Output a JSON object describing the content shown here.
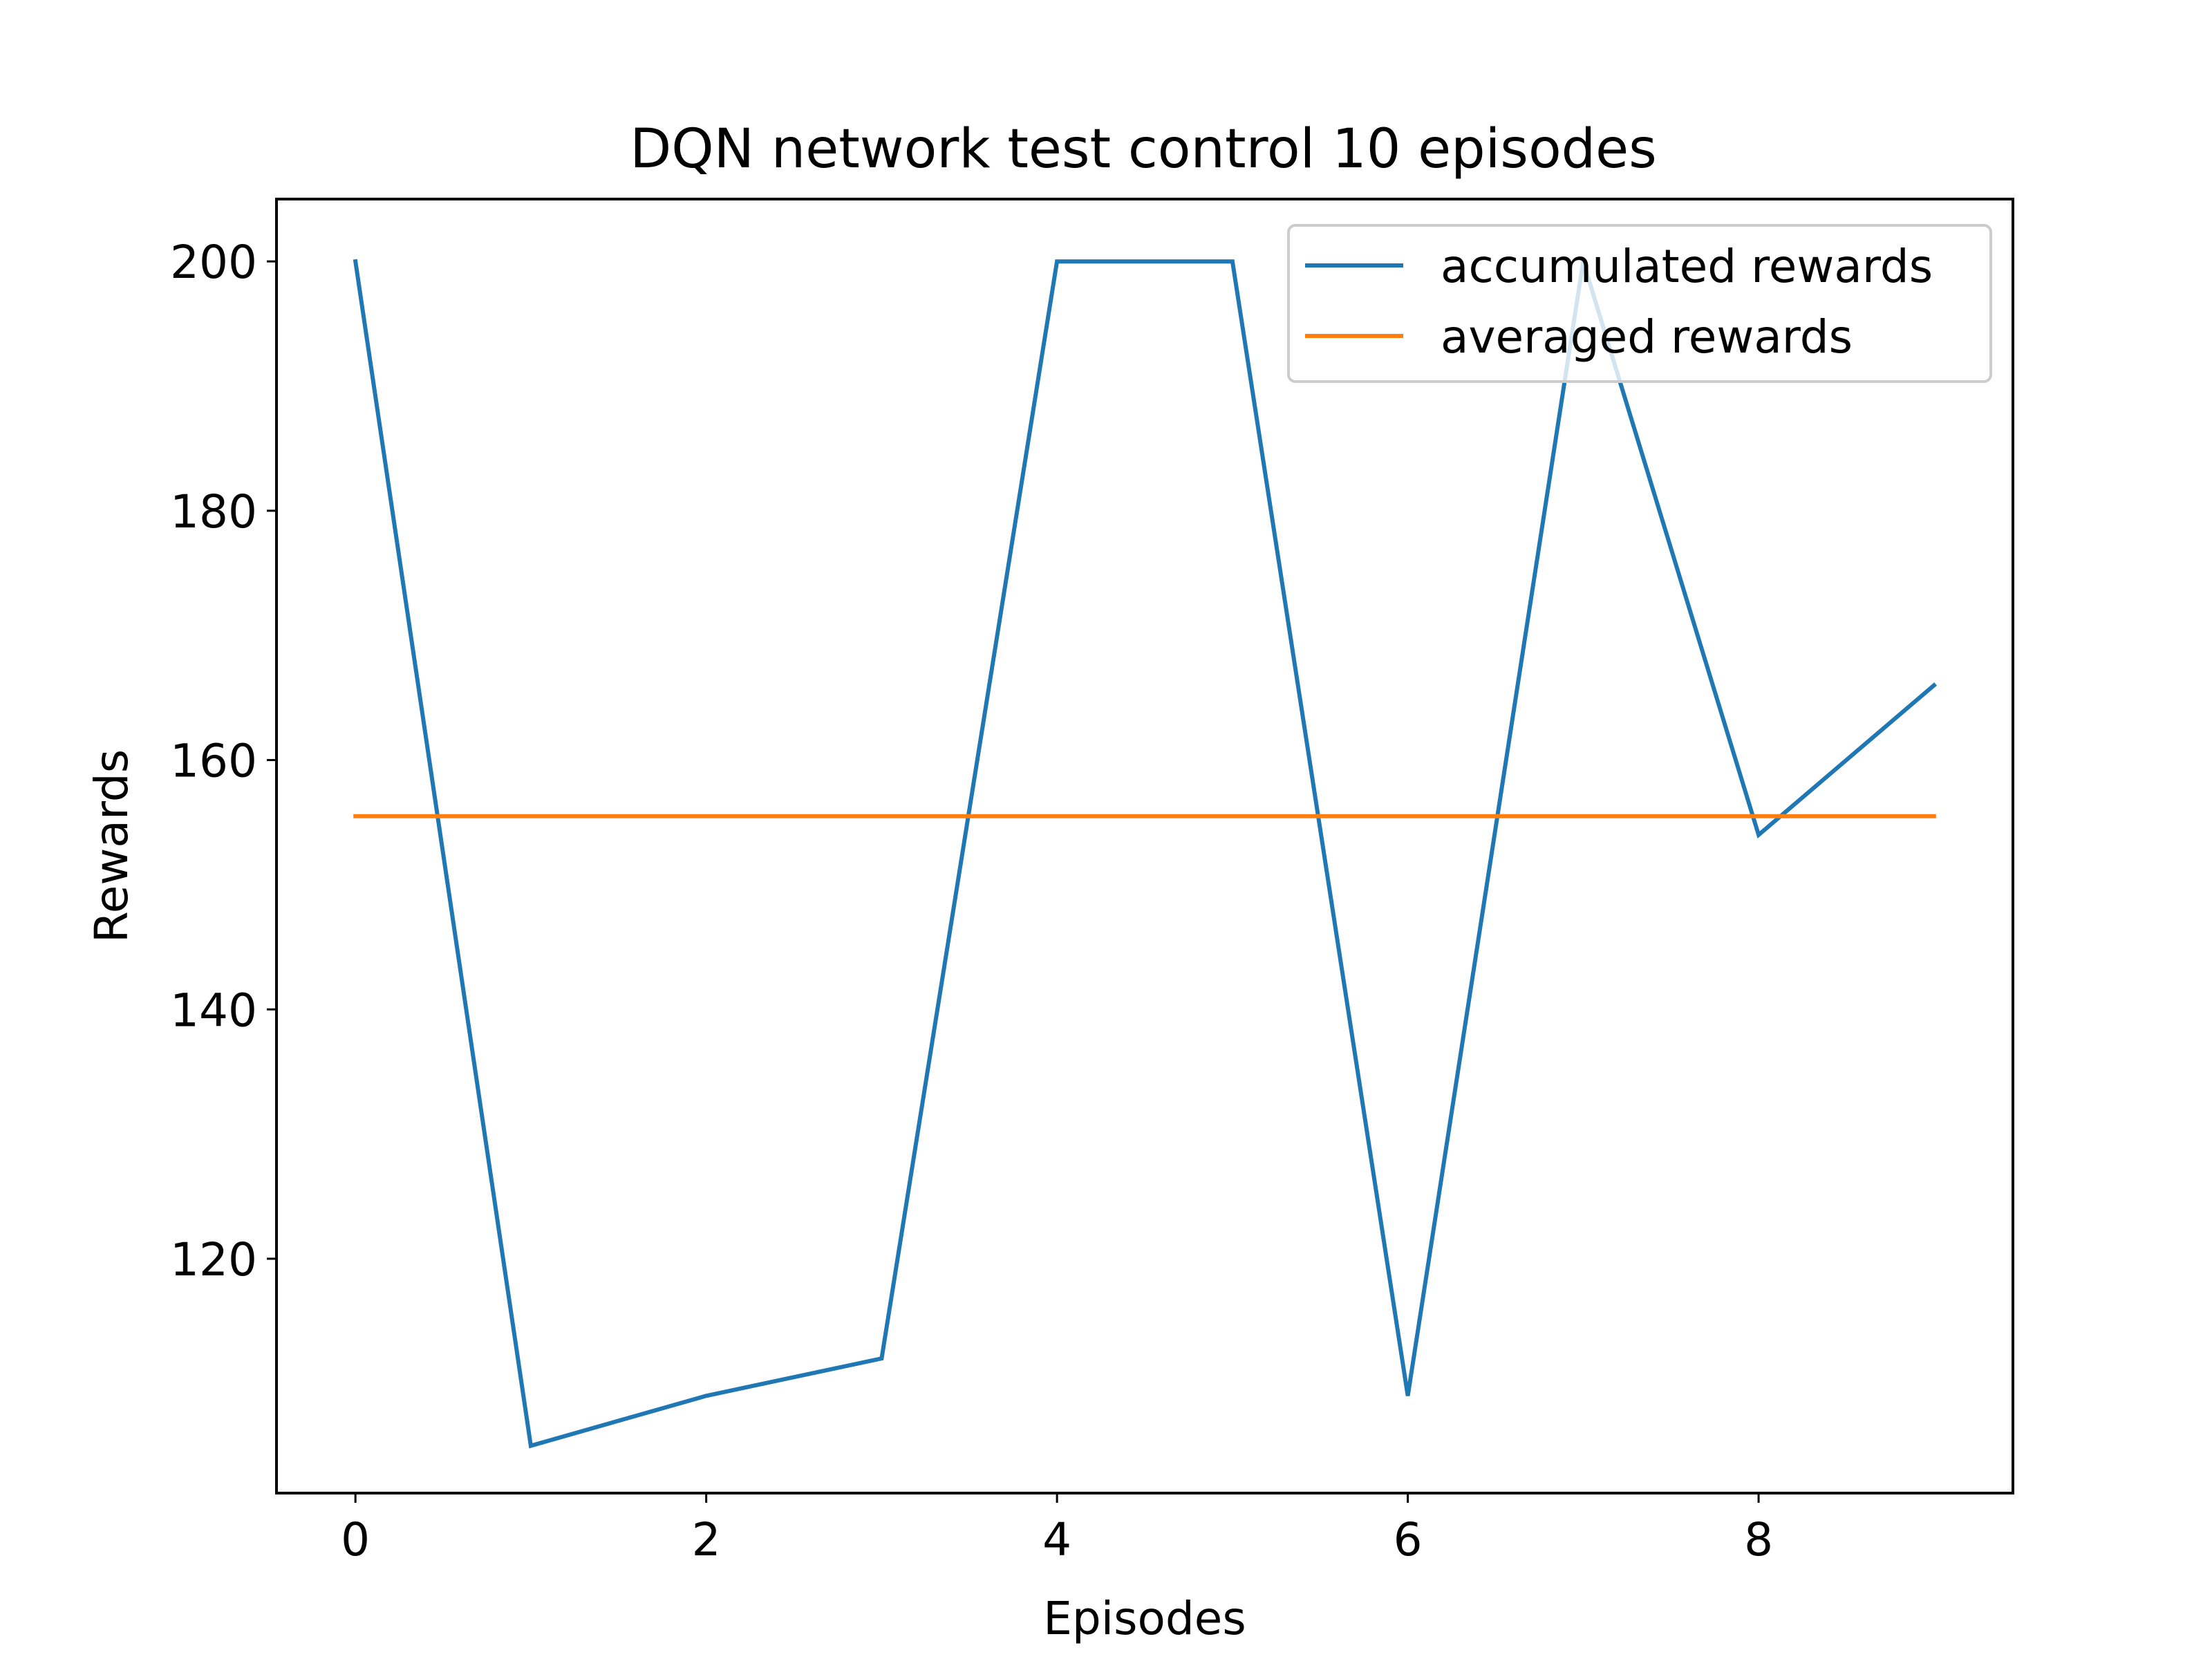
{
  "chart_data": {
    "type": "line",
    "title": "DQN network test control 10 episodes",
    "xlabel": "Episodes",
    "ylabel": "Rewards",
    "xlim": [
      -0.45,
      9.45
    ],
    "ylim": [
      101.2,
      205
    ],
    "xticks": [
      0,
      2,
      4,
      6,
      8
    ],
    "yticks": [
      120,
      140,
      160,
      180,
      200
    ],
    "grid": false,
    "legend_position": "upper right",
    "x": [
      0,
      1,
      2,
      3,
      4,
      5,
      6,
      7,
      8,
      9
    ],
    "series": [
      {
        "name": "accumulated rewards",
        "color": "#1f77b4",
        "values": [
          200,
          105,
          109,
          112,
          200,
          200,
          109,
          200,
          154,
          166
        ]
      },
      {
        "name": "averaged rewards",
        "color": "#ff7f0e",
        "values": [
          155.5,
          155.5,
          155.5,
          155.5,
          155.5,
          155.5,
          155.5,
          155.5,
          155.5,
          155.5
        ]
      }
    ]
  }
}
